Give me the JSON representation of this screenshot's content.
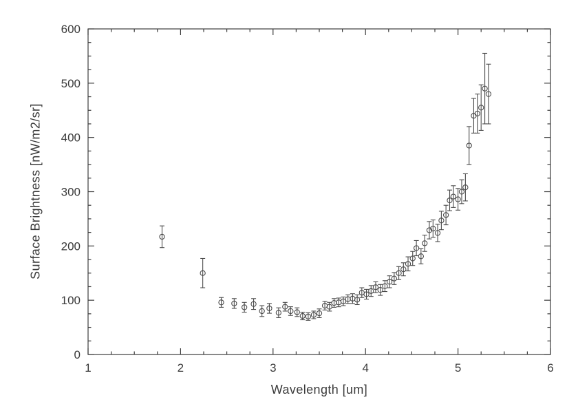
{
  "chart_data": {
    "type": "scatter",
    "title": "",
    "xlabel": "Wavelength [um]",
    "ylabel": "Surface Brightness [nW/m2/sr]",
    "xlim": [
      1,
      6
    ],
    "ylim": [
      0,
      600
    ],
    "x_ticks": [
      1,
      2,
      3,
      4,
      5,
      6
    ],
    "y_ticks": [
      0,
      100,
      200,
      300,
      400,
      500,
      600
    ],
    "x_minor_interval": 0.25,
    "y_minor_interval": 25,
    "grid": false,
    "legend": "none",
    "marker": "open-circle",
    "error_bars": true,
    "axis_color": "#3b3b3b",
    "text_color": "#3b3b3b",
    "point_color": "#4a4a4a",
    "background": "#ffffff",
    "points": [
      [
        1.8,
        217,
        20
      ],
      [
        2.24,
        150,
        27
      ],
      [
        2.44,
        96,
        9
      ],
      [
        2.58,
        94,
        9
      ],
      [
        2.69,
        87,
        9
      ],
      [
        2.79,
        93,
        10
      ],
      [
        2.88,
        80,
        10
      ],
      [
        2.96,
        85,
        9
      ],
      [
        3.06,
        77,
        9
      ],
      [
        3.13,
        88,
        8
      ],
      [
        3.19,
        80,
        8
      ],
      [
        3.26,
        78,
        8
      ],
      [
        3.32,
        71,
        7
      ],
      [
        3.38,
        70,
        7
      ],
      [
        3.44,
        73,
        7
      ],
      [
        3.5,
        76,
        8
      ],
      [
        3.56,
        90,
        8
      ],
      [
        3.61,
        88,
        8
      ],
      [
        3.66,
        95,
        8
      ],
      [
        3.71,
        96,
        8
      ],
      [
        3.76,
        98,
        8
      ],
      [
        3.81,
        102,
        8
      ],
      [
        3.86,
        103,
        9
      ],
      [
        3.91,
        101,
        9
      ],
      [
        3.96,
        114,
        9
      ],
      [
        4.01,
        111,
        9
      ],
      [
        4.06,
        117,
        10
      ],
      [
        4.11,
        124,
        10
      ],
      [
        4.16,
        119,
        10
      ],
      [
        4.21,
        126,
        10
      ],
      [
        4.26,
        134,
        11
      ],
      [
        4.31,
        140,
        11
      ],
      [
        4.36,
        150,
        12
      ],
      [
        4.41,
        157,
        12
      ],
      [
        4.46,
        167,
        13
      ],
      [
        4.51,
        177,
        13
      ],
      [
        4.55,
        196,
        14
      ],
      [
        4.6,
        181,
        14
      ],
      [
        4.64,
        205,
        15
      ],
      [
        4.69,
        229,
        16
      ],
      [
        4.73,
        232,
        16
      ],
      [
        4.78,
        224,
        16
      ],
      [
        4.82,
        247,
        17
      ],
      [
        4.87,
        257,
        18
      ],
      [
        4.91,
        284,
        19
      ],
      [
        4.95,
        291,
        20
      ],
      [
        5.0,
        286,
        20
      ],
      [
        5.04,
        300,
        22
      ],
      [
        5.08,
        308,
        25
      ],
      [
        5.12,
        385,
        35
      ],
      [
        5.17,
        440,
        32
      ],
      [
        5.21,
        444,
        36
      ],
      [
        5.25,
        455,
        42
      ],
      [
        5.29,
        490,
        65
      ],
      [
        5.33,
        480,
        55
      ]
    ]
  }
}
